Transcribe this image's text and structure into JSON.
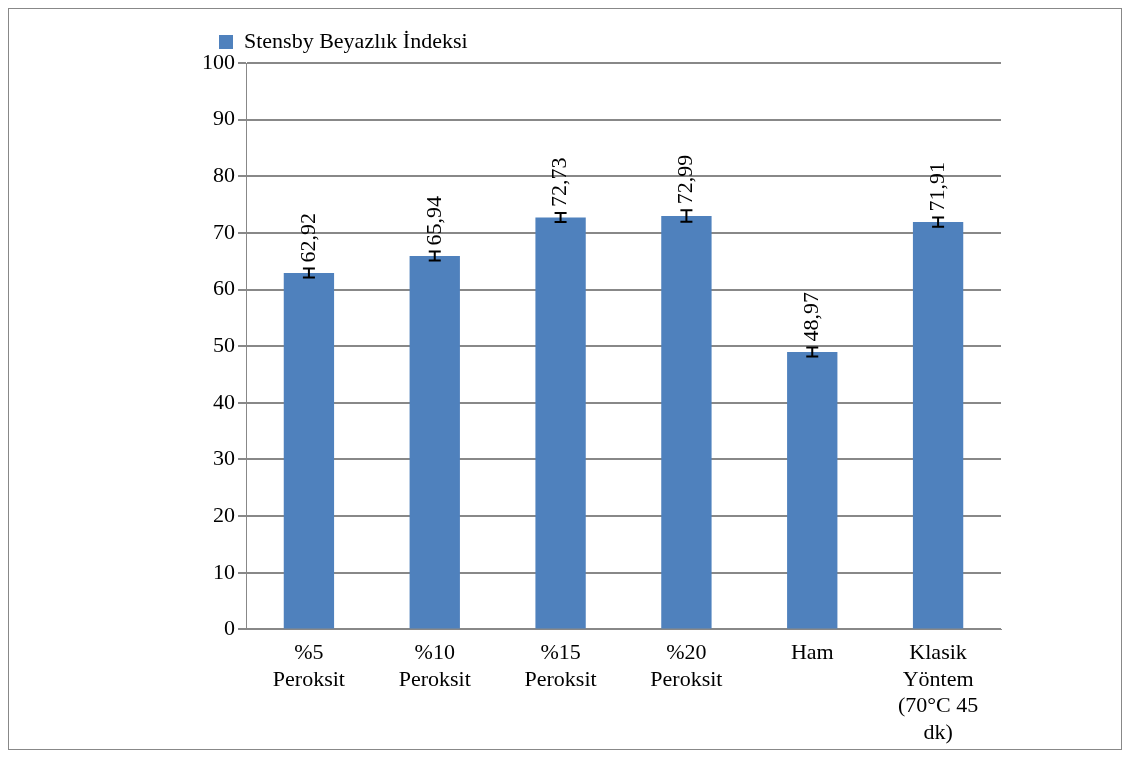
{
  "chart_data": {
    "type": "bar",
    "categories": [
      "%5 Peroksit",
      "%10 Peroksit",
      "%15 Peroksit",
      "%20 Peroksit",
      "Ham",
      "Klasik Yöntem (70°C 45 dk)"
    ],
    "series": [
      {
        "name": "Stensby Beyazlık İndeksi",
        "color": "#4f81bd",
        "values": [
          62.92,
          65.94,
          72.73,
          72.99,
          48.97,
          71.91
        ],
        "errors": [
          0.8,
          0.8,
          0.8,
          1.0,
          0.8,
          0.8
        ],
        "value_labels": [
          "62,92",
          "65,94",
          "72,73",
          "72,99",
          "48,97",
          "71,91"
        ]
      }
    ],
    "ylim": [
      0,
      100
    ],
    "yticks": [
      0,
      10,
      20,
      30,
      40,
      50,
      60,
      70,
      80,
      90,
      100
    ],
    "grid": "y",
    "legend": "top left"
  }
}
